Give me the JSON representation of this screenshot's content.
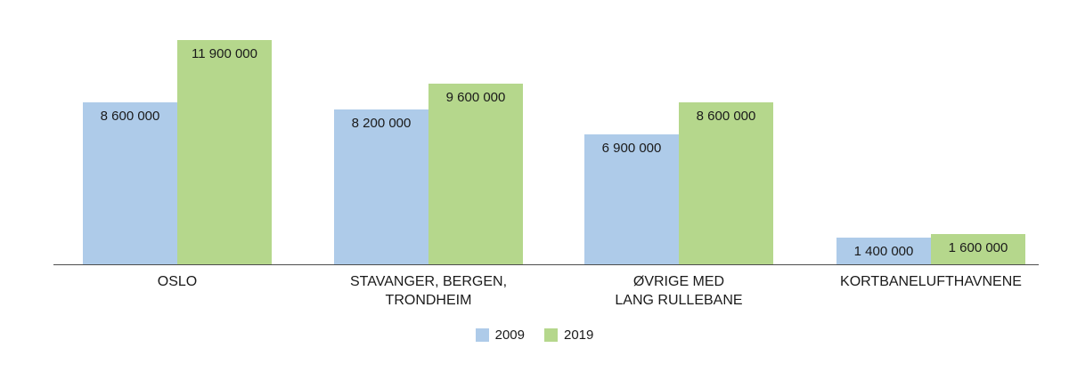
{
  "chart_data": {
    "type": "bar",
    "title": "",
    "xlabel": "",
    "ylabel": "",
    "ylim": [
      0,
      11900000
    ],
    "grid": false,
    "legend_position": "bottom-center",
    "value_label_format": "space-separated thousands, inside bar top",
    "categories": [
      "OSLO",
      "STAVANGER, BERGEN,\nTRONDHEIM",
      "ØVRIGE MED\nLANG RULLEBANE",
      "KORTBANELUFTHAVNENE"
    ],
    "series": [
      {
        "name": "2009",
        "color": "#AECBE9",
        "values": [
          8600000,
          8200000,
          6900000,
          1400000
        ],
        "labels": [
          "8 600 000",
          "8 200 000",
          "6 900 000",
          "1 400 000"
        ]
      },
      {
        "name": "2019",
        "color": "#B5D78C",
        "values": [
          11900000,
          9600000,
          8600000,
          1600000
        ],
        "labels": [
          "11 900 000",
          "9 600 000",
          "8 600 000",
          "1 600 000"
        ]
      }
    ]
  },
  "colors": {
    "axis": "#4d4d4d",
    "text": "#1a1a1a",
    "background": "#ffffff"
  }
}
